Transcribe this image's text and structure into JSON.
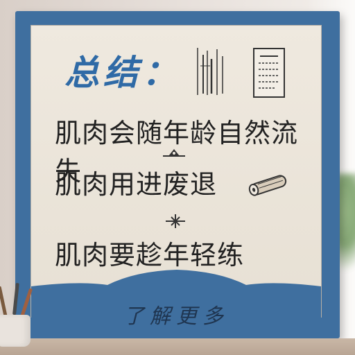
{
  "heading": "总结：",
  "lines": [
    "肌肉会随年龄自然流失",
    "肌肉用进废退",
    "肌肉要趁年轻练"
  ],
  "cta_label": "了解更多",
  "colors": {
    "board_blue": "#3f6f9f",
    "heading_blue": "#2f6aa6",
    "panel": "#efe9df",
    "text": "#222222"
  },
  "icons": [
    "chart-sketch-icon",
    "document-icon",
    "divider-ornament-icon",
    "scroll-icon",
    "pencil-cup-icon"
  ]
}
